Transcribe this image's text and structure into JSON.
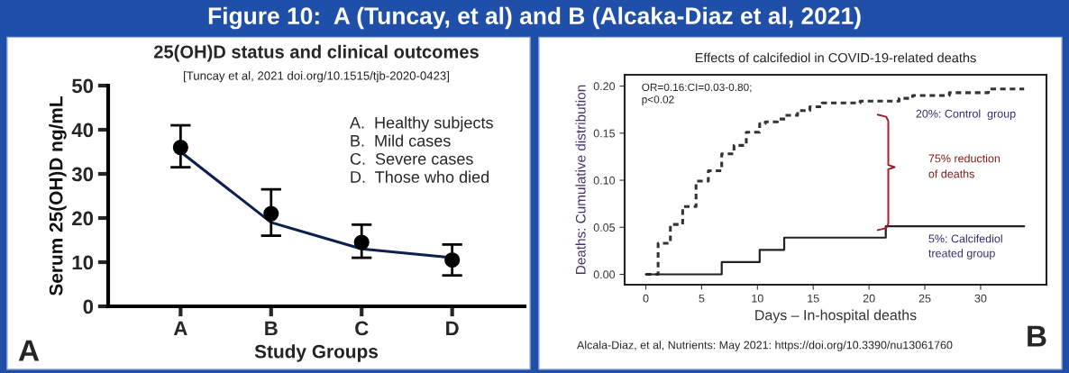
{
  "chart_data": [
    {
      "type": "scatter",
      "title": "25(OH)D status and clinical outcomes",
      "subtitle": "[Tuncay et al, 2021 doi.org/10.1515/tjb-2020-0423]",
      "xlabel": "Study Groups",
      "ylabel": "Serum 25(OH)D ng/mL",
      "categories": [
        "A",
        "B",
        "C",
        "D"
      ],
      "ylim": [
        0,
        50
      ],
      "yticks": [
        0,
        10,
        20,
        30,
        40,
        50
      ],
      "grid": false,
      "annotations": [
        "Figure 10:  A (Tuncay, et al) and B (Alcaka-Diaz et al, 2021)",
        "A.  Healthy subjects\nB.  Mild cases\nC.  Severe cases\nD.  Those who died",
        "A"
      ],
      "series": [
        {
          "type": "line",
          "color": "#0d1f4e",
          "values": [
            35,
            19,
            13,
            11
          ],
          "marker": "none"
        },
        {
          "type": "scatter",
          "color": "#000000",
          "marker": "circle",
          "values": [
            36,
            21,
            14.5,
            10.5
          ],
          "errors": [
            [
              31.5,
              41
            ],
            [
              16,
              26.5
            ],
            [
              11,
              18.5
            ],
            [
              7,
              14
            ]
          ]
        }
      ]
    },
    {
      "type": "step",
      "title": "Effects of calcifediol in COVID-19-related deaths",
      "xlabel": "Days – In-hospital deaths",
      "ylabel": "Deaths: Cumulative distribution",
      "xlim": [
        -1.9,
        35.9
      ],
      "xticks": [
        0,
        5,
        10,
        15,
        20,
        25,
        30
      ],
      "ylim": [
        -0.011,
        0.212
      ],
      "yticks": [
        {
          "value": 0,
          "label": "0.00"
        },
        {
          "value": 0.05,
          "label": "0.05"
        },
        {
          "value": 0.1,
          "label": "0.10"
        },
        {
          "value": 0.15,
          "label": "0.15"
        },
        {
          "value": 0.2,
          "label": "0.20"
        }
      ],
      "grid": false,
      "annotations": [
        "OR=0.16:CI=0.03-0.80;\np<0.02",
        "75% reduction\nof deaths",
        "Alcala-Diaz, et al, Nutrients: May 2021: https://doi.org/10.3390/nu13061760",
        "B"
      ],
      "series": [
        {
          "name": "20%: Control  group",
          "color": "#333333",
          "line_style": "dashed",
          "x": [
            0,
            1.1,
            2.2,
            3.3,
            4.5,
            5.6,
            6.8,
            7.9,
            9.0,
            10.2,
            10.7,
            11.8,
            12.5,
            13.6,
            14.7,
            15.8,
            19.2,
            22.7,
            23.9,
            27.2,
            30.7,
            33.9
          ],
          "values": [
            0,
            0.033,
            0.053,
            0.072,
            0.099,
            0.11,
            0.128,
            0.137,
            0.151,
            0.16,
            0.162,
            0.165,
            0.169,
            0.174,
            0.178,
            0.182,
            0.184,
            0.187,
            0.19,
            0.193,
            0.197,
            0.197
          ]
        },
        {
          "name": "5%: Calcifediol\ntreated group",
          "color": "#222222",
          "line_style": "solid",
          "x": [
            0,
            6.8,
            10.2,
            12.4,
            21.5,
            33.9
          ],
          "values": [
            0,
            0.013,
            0.026,
            0.039,
            0.051,
            0.051
          ]
        }
      ]
    }
  ]
}
